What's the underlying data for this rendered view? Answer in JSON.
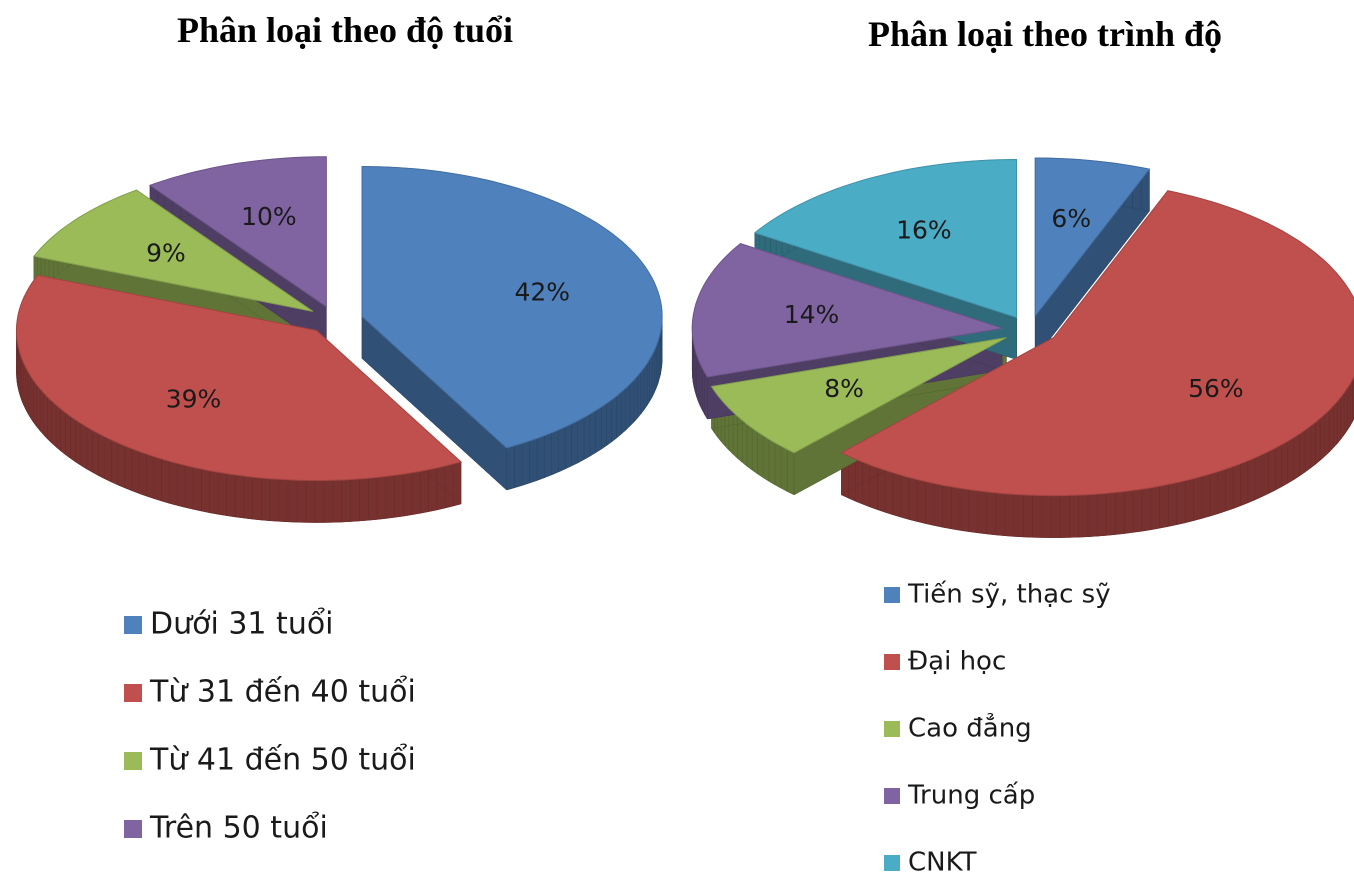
{
  "chart_data": [
    {
      "type": "pie",
      "title": "Phân loại theo độ tuổi",
      "categories": [
        "Dưới 31 tuổi",
        "Từ 31 đến 40 tuổi",
        "Từ 41 đến 50 tuổi",
        "Trên 50 tuổi"
      ],
      "values": [
        42,
        39,
        9,
        10
      ],
      "value_labels": [
        "42%",
        "39%",
        "9%",
        "10%"
      ],
      "colors": [
        "#4f81bd",
        "#c0504d",
        "#9bbb59",
        "#8064a2"
      ]
    },
    {
      "type": "pie",
      "title": "Phân loại theo trình độ",
      "categories": [
        "Tiến sỹ, thạc sỹ",
        "Đại học",
        "Cao đẳng",
        "Trung cấp",
        "CNKT"
      ],
      "values": [
        6,
        56,
        8,
        14,
        16
      ],
      "value_labels": [
        "6%",
        "56%",
        "8%",
        "14%",
        "16%"
      ],
      "colors": [
        "#4f81bd",
        "#c0504d",
        "#9bbb59",
        "#8064a2",
        "#4bacc6"
      ]
    }
  ]
}
